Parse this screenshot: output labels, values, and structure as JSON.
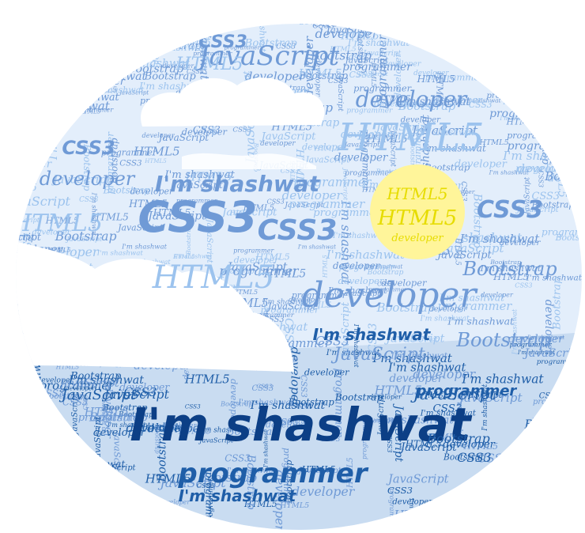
{
  "colors": {
    "sky": "#e3eefb",
    "sea": "#c9dcf1",
    "cloud": "#ffffff",
    "sun": "#fff59a",
    "sun_text": "#e6dc00",
    "text_light": "#9cc3ee",
    "text_mid": "#6f9ad6",
    "text_dark": "#1f5ea8",
    "text_navy": "#0c3f86"
  },
  "words": {
    "primary": "I'm shashwat",
    "html": "HTML5",
    "css": "CSS3",
    "js": "JavaScript",
    "bootstrap": "Bootstrap",
    "developer": "developer",
    "programmer": "programmer"
  }
}
